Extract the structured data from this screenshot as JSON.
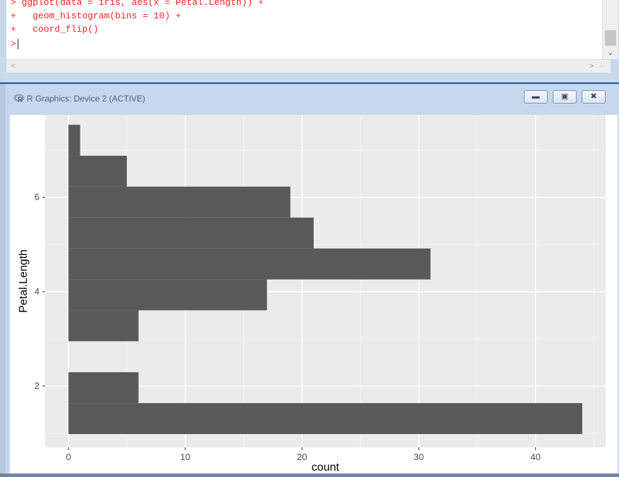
{
  "console": {
    "lines": [
      {
        "prompt": ">",
        "text": "ggplot(data = iris, aes(x = Petal.Length)) +"
      },
      {
        "prompt": "+",
        "text": "  geom_histogram(bins = 10) +"
      },
      {
        "prompt": "+",
        "text": "  coord_flip()"
      },
      {
        "prompt": ">",
        "text": ""
      }
    ],
    "scroll_left_icon": "chevron-left-icon",
    "scroll_right_icon": "chevron-right-icon",
    "scroll_down_icon": "chevron-down-icon"
  },
  "graphics_window": {
    "title": "R Graphics: Device 2 (ACTIVE)",
    "logo_letter": "R",
    "minimize_icon": "minimize-icon",
    "maximize_icon": "maximize-icon",
    "close_icon": "close-icon"
  },
  "chart_data": {
    "type": "bar",
    "orientation": "horizontal",
    "xlabel": "Petal.Length",
    "ylabel": "count",
    "count_range": [
      -2,
      46
    ],
    "petal_range": [
      0.7,
      7.75
    ],
    "count_ticks": [
      0,
      10,
      20,
      30,
      40
    ],
    "petal_ticks": [
      2,
      4,
      6
    ],
    "grid": true,
    "panel_color": "#ebebeb",
    "bar_color": "#595959",
    "bins": [
      {
        "lo": 0.983,
        "hi": 1.639,
        "count": 44
      },
      {
        "lo": 1.639,
        "hi": 2.294,
        "count": 6
      },
      {
        "lo": 2.294,
        "hi": 2.95,
        "count": 0
      },
      {
        "lo": 2.95,
        "hi": 3.606,
        "count": 6
      },
      {
        "lo": 3.606,
        "hi": 4.261,
        "count": 17
      },
      {
        "lo": 4.261,
        "hi": 4.917,
        "count": 31
      },
      {
        "lo": 4.917,
        "hi": 5.572,
        "count": 21
      },
      {
        "lo": 5.572,
        "hi": 6.228,
        "count": 19
      },
      {
        "lo": 6.228,
        "hi": 6.883,
        "count": 5
      },
      {
        "lo": 6.883,
        "hi": 7.539,
        "count": 1
      }
    ]
  }
}
